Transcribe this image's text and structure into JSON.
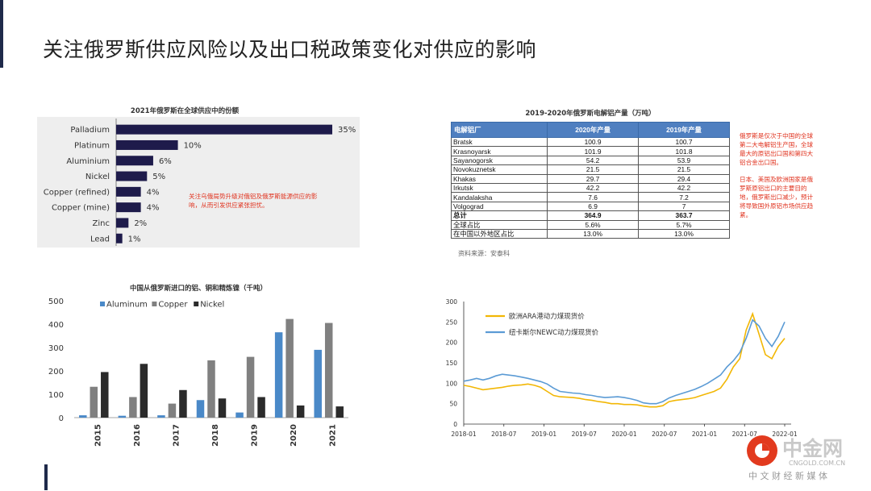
{
  "page": {
    "title": "关注俄罗斯供应风险以及出口税政策变化对供应的影响"
  },
  "colors": {
    "navy_bar": "#1e1b4b",
    "aluminium": "#4a89c8",
    "copper": "#808080",
    "nickel": "#2b2b2b",
    "ara": "#f2b705",
    "newc": "#5b9bd5",
    "table_header": "#4f7fc0",
    "note_red": "#e0321e"
  },
  "chart_data": [
    {
      "id": "share",
      "type": "bar",
      "orientation": "horizontal",
      "title": "2021年俄罗斯在全球供应中的份额",
      "categories": [
        "Palladium",
        "Platinum",
        "Aluminium",
        "Nickel",
        "Copper (refined)",
        "Copper (mine)",
        "Zinc",
        "Lead"
      ],
      "values": [
        35,
        10,
        6,
        5,
        4,
        4,
        2,
        1
      ],
      "value_labels": [
        "35%",
        "10%",
        "6%",
        "5%",
        "4%",
        "4%",
        "2%",
        "1%"
      ],
      "xlim": [
        0,
        35
      ]
    },
    {
      "id": "imports",
      "type": "bar",
      "title": "中国从俄罗斯进口的铝、铜和精炼镍（千吨）",
      "categories": [
        "2015",
        "2016",
        "2017",
        "2018",
        "2019",
        "2020",
        "2021"
      ],
      "series": [
        {
          "name": "Aluminum",
          "values": [
            10,
            8,
            10,
            75,
            22,
            365,
            290
          ]
        },
        {
          "name": "Copper",
          "values": [
            132,
            88,
            60,
            245,
            260,
            422,
            405
          ]
        },
        {
          "name": "Nickel",
          "values": [
            195,
            230,
            118,
            82,
            88,
            52,
            48
          ]
        }
      ],
      "ylim": [
        0,
        500
      ],
      "yticks": [
        "0",
        "100",
        "200",
        "300",
        "400",
        "500"
      ],
      "legend": "top-left"
    },
    {
      "id": "coal",
      "type": "line",
      "series": [
        {
          "name": "欧洲ARA港动力煤现货价"
        },
        {
          "name": "纽卡斯尔NEWC动力煤现货价"
        }
      ],
      "ylim": [
        0,
        300
      ],
      "yticks": [
        "0",
        "50",
        "100",
        "150",
        "200",
        "250",
        "300"
      ],
      "xticks": [
        "2018-01",
        "2018-07",
        "2019-01",
        "2019-07",
        "2020-01",
        "2020-07",
        "2021-01",
        "2021-07",
        "2022-01"
      ],
      "x_index_range": [
        0,
        50
      ],
      "ara_values": [
        95,
        92,
        88,
        84,
        86,
        88,
        90,
        93,
        95,
        96,
        98,
        95,
        90,
        80,
        70,
        67,
        66,
        65,
        63,
        60,
        58,
        55,
        53,
        50,
        50,
        48,
        48,
        47,
        44,
        42,
        42,
        45,
        55,
        58,
        60,
        62,
        65,
        70,
        75,
        80,
        88,
        110,
        140,
        160,
        230,
        270,
        220,
        170,
        160,
        190,
        210
      ],
      "newc_values": [
        105,
        108,
        112,
        108,
        112,
        118,
        122,
        120,
        118,
        115,
        112,
        108,
        104,
        98,
        88,
        80,
        78,
        76,
        75,
        72,
        70,
        67,
        65,
        66,
        67,
        65,
        62,
        58,
        52,
        50,
        50,
        55,
        64,
        70,
        75,
        80,
        85,
        92,
        100,
        110,
        120,
        140,
        155,
        175,
        210,
        255,
        240,
        210,
        190,
        215,
        250
      ],
      "legend": "top-left"
    }
  ],
  "table": {
    "title": "2019-2020年俄罗斯电解铝产量（万吨）",
    "headers": [
      "电解铝厂",
      "2020年产量",
      "2019年产量"
    ],
    "rows": [
      [
        "Bratsk",
        "100.9",
        "100.7"
      ],
      [
        "Krasnoyarsk",
        "101.9",
        "101.8"
      ],
      [
        "Sayanogorsk",
        "54.2",
        "53.9"
      ],
      [
        "Novokuznetsk",
        "21.5",
        "21.5"
      ],
      [
        "Khakas",
        "29.7",
        "29.4"
      ],
      [
        "Irkutsk",
        "42.2",
        "42.2"
      ],
      [
        "Kandalaksha",
        "7.6",
        "7.2"
      ],
      [
        "Volgograd",
        "6.9",
        "7"
      ],
      [
        "总计",
        "364.9",
        "363.7"
      ],
      [
        "全球占比",
        "5.6%",
        "5.7%"
      ],
      [
        "在中国以外地区占比",
        "13.0%",
        "13.0%"
      ]
    ],
    "source": "资料来源：安泰科"
  },
  "notes": {
    "share_note": [
      "关注乌俄局势升级对俄铝及俄罗斯能源供应的影",
      "响，从而引发供应紧张担忧。"
    ],
    "right_note_1": [
      "俄罗斯是仅次于中国的全球",
      "第二大电解铝生产国，全球",
      "最大的原铝出口国和第四大",
      "铝合金出口国。"
    ],
    "right_note_2": [
      "日本、美国及欧洲国家是俄",
      "罗斯原铝出口的主要目的",
      "地，俄罗斯出口减少，预计",
      "将导致国外原铝市场供应趋",
      "紧。"
    ]
  },
  "watermark": {
    "brand_cn": "中金网",
    "url": "CNGOLD.COM.CN",
    "tagline": "中 文 财 经 新 媒 体"
  }
}
